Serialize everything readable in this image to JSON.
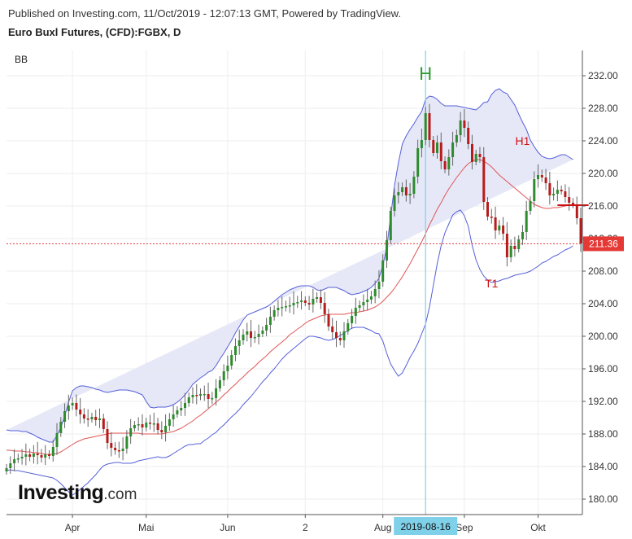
{
  "header": {
    "published": "Published on Investing.com, 11/Oct/2019 - 12:07:13 GMT, Powered by TradingView.",
    "instrument": "Euro Buxl Futures, (CFD):FGBX, D",
    "indicator": "BB"
  },
  "logo": {
    "brand": "Investing",
    "suffix": ".com"
  },
  "colors": {
    "up": "#2e8b2e",
    "down": "#b71c1c",
    "band_line": "#5560d8",
    "band_fill": "#e3e5f6",
    "basis": "#e05555",
    "price_line": "#e53935",
    "cursor": "#7fd1ea",
    "grid": "#eeeeee"
  },
  "chart_data": {
    "type": "candlestick",
    "title": "Euro Buxl Futures, (CFD):FGBX, D",
    "indicator": "Bollinger Bands",
    "ylim": [
      178,
      234
    ],
    "y_ticks": [
      180,
      184,
      188,
      192,
      196,
      200,
      204,
      208,
      212,
      216,
      220,
      224,
      228,
      232
    ],
    "x_ticks": [
      {
        "i": 17,
        "label": "Apr"
      },
      {
        "i": 36,
        "label": "Mai"
      },
      {
        "i": 57,
        "label": "Jun"
      },
      {
        "i": 77,
        "label": "2"
      },
      {
        "i": 97,
        "label": "Aug"
      },
      {
        "i": 118,
        "label": "Sep"
      },
      {
        "i": 137,
        "label": "Okt"
      }
    ],
    "cursor": {
      "i": 108,
      "label": "2019-08-16"
    },
    "current_price": 211.36,
    "annotations": [
      {
        "i": 108,
        "y": 231.5,
        "text": "H",
        "color": "#2e9a2e"
      },
      {
        "i": 133,
        "y": 223.5,
        "text": "H1",
        "color": "#cc1111"
      },
      {
        "i": 125,
        "y": 206.0,
        "text": "T1",
        "color": "#cc1111"
      }
    ],
    "level": {
      "from_i": 142,
      "to_i": 150,
      "y": 216.1
    },
    "close": [
      183.8,
      184.4,
      184.9,
      185.0,
      185.2,
      185.5,
      185.2,
      185.6,
      185.4,
      185.1,
      185.5,
      185.3,
      186.4,
      188.1,
      189.5,
      190.8,
      191.5,
      191.8,
      191.0,
      190.4,
      189.9,
      189.8,
      190.1,
      189.7,
      189.9,
      188.6,
      186.9,
      186.3,
      186.0,
      185.9,
      186.2,
      187.7,
      188.7,
      189.1,
      189.2,
      188.8,
      189.4,
      189.3,
      189.3,
      188.5,
      188.2,
      189.0,
      189.8,
      190.4,
      190.9,
      191.2,
      191.8,
      192.5,
      192.8,
      192.7,
      192.9,
      192.9,
      192.3,
      192.4,
      193.6,
      194.6,
      195.7,
      196.4,
      197.7,
      198.8,
      199.5,
      200.2,
      200.6,
      199.8,
      199.9,
      200.3,
      200.7,
      201.4,
      202.4,
      203.2,
      203.5,
      203.6,
      203.7,
      203.8,
      204.1,
      204.2,
      204.4,
      204.1,
      203.9,
      204.6,
      204.8,
      204.1,
      202.7,
      201.2,
      200.5,
      199.8,
      199.5,
      200.6,
      201.6,
      202.5,
      203.5,
      203.8,
      204.2,
      204.5,
      204.9,
      205.8,
      206.7,
      209.3,
      211.8,
      215.4,
      217.3,
      217.7,
      218.3,
      217.3,
      217.5,
      219.6,
      223.1,
      224.1,
      227.4,
      224.1,
      222.5,
      223.8,
      221.5,
      220.5,
      222.0,
      223.8,
      224.7,
      226.5,
      225.6,
      223.6,
      221.4,
      222.4,
      222.0,
      216.5,
      214.7,
      214.6,
      213.0,
      213.6,
      212.6,
      209.7,
      211.1,
      210.7,
      211.9,
      212.8,
      215.4,
      216.6,
      219.3,
      219.8,
      219.5,
      218.8,
      217.3,
      217.5,
      218.0,
      217.8,
      217.1,
      216.4,
      216.2,
      214.5,
      211.4
    ],
    "upper_band": [
      188.5,
      188.4,
      188.4,
      188.4,
      188.3,
      188.3,
      188.1,
      187.9,
      187.6,
      187.4,
      187.2,
      187.0,
      187.0,
      187.8,
      188.8,
      190.2,
      191.9,
      193.3,
      193.7,
      193.9,
      193.9,
      193.8,
      193.7,
      193.5,
      193.4,
      193.2,
      193.1,
      193.2,
      193.3,
      193.4,
      193.4,
      193.4,
      193.3,
      193.2,
      193.0,
      192.8,
      192.0,
      191.3,
      191.2,
      191.3,
      191.3,
      191.3,
      191.4,
      191.6,
      191.9,
      192.3,
      192.8,
      193.4,
      194.1,
      194.5,
      194.9,
      195.2,
      195.6,
      195.8,
      196.4,
      197.2,
      197.9,
      198.7,
      199.5,
      200.4,
      201.2,
      202.0,
      202.6,
      202.8,
      203.0,
      203.2,
      203.4,
      203.6,
      203.9,
      204.3,
      204.7,
      205.1,
      205.4,
      205.7,
      205.9,
      206.1,
      206.2,
      206.2,
      206.2,
      206.0,
      205.7,
      205.6,
      205.8,
      206.0,
      206.0,
      206.0,
      205.8,
      205.6,
      205.3,
      205.1,
      205.2,
      205.3,
      205.5,
      205.7,
      206.0,
      206.5,
      207.1,
      208.7,
      210.9,
      214.7,
      218.5,
      221.3,
      223.6,
      224.6,
      225.4,
      226.1,
      226.9,
      227.6,
      229.1,
      229.5,
      229.4,
      229.1,
      228.6,
      228.3,
      228.3,
      228.3,
      228.3,
      228.2,
      228.1,
      228.0,
      227.9,
      227.8,
      228.2,
      228.7,
      228.8,
      229.7,
      230.2,
      230.4,
      230.0,
      229.8,
      229.1,
      228.4,
      227.3,
      226.3,
      225.4,
      224.1,
      223.3,
      222.6,
      222.1,
      221.9,
      221.8,
      221.9,
      222.1,
      222.3,
      222.3,
      222.0,
      221.7
    ],
    "basis": [
      186.0,
      186.0,
      185.9,
      185.9,
      185.9,
      185.8,
      185.8,
      185.7,
      185.7,
      185.6,
      185.5,
      185.5,
      185.5,
      185.6,
      185.8,
      186.1,
      186.4,
      186.7,
      187.0,
      187.2,
      187.4,
      187.5,
      187.6,
      187.7,
      187.8,
      187.9,
      188.0,
      188.1,
      188.1,
      188.1,
      188.1,
      188.1,
      188.1,
      188.1,
      188.1,
      188.0,
      188.0,
      188.0,
      188.0,
      188.0,
      188.0,
      188.1,
      188.2,
      188.3,
      188.5,
      188.7,
      189.0,
      189.3,
      189.6,
      190.0,
      190.3,
      190.7,
      191.1,
      191.5,
      191.9,
      192.3,
      192.8,
      193.2,
      193.7,
      194.1,
      194.6,
      195.0,
      195.5,
      195.9,
      196.3,
      196.8,
      197.2,
      197.6,
      198.1,
      198.5,
      198.9,
      199.3,
      199.7,
      200.2,
      200.5,
      200.9,
      201.2,
      201.6,
      201.9,
      202.1,
      202.3,
      202.5,
      202.6,
      202.7,
      202.7,
      202.7,
      202.7,
      202.7,
      202.8,
      202.9,
      202.9,
      203.0,
      203.1,
      203.2,
      203.4,
      203.6,
      203.9,
      204.3,
      204.8,
      205.3,
      205.9,
      206.6,
      207.3,
      208.1,
      208.9,
      209.8,
      210.7,
      211.6,
      212.6,
      213.7,
      214.6,
      215.6,
      216.4,
      217.3,
      218.1,
      218.8,
      219.5,
      220.1,
      220.7,
      221.2,
      221.5,
      221.7,
      221.7,
      221.5,
      221.2,
      220.8,
      220.3,
      219.8,
      219.4,
      219.0,
      218.6,
      218.2,
      217.8,
      217.4,
      217.0,
      216.6,
      216.2,
      216.0,
      215.8,
      215.7,
      215.7,
      215.8,
      215.8,
      215.9,
      216.0,
      216.1,
      216.2
    ],
    "lower_band": [
      183.5,
      183.6,
      183.5,
      183.5,
      183.4,
      183.3,
      183.2,
      183.1,
      183.0,
      182.9,
      182.8,
      182.7,
      182.6,
      182.3,
      181.9,
      181.4,
      180.9,
      180.5,
      180.8,
      181.2,
      181.6,
      182.0,
      182.5,
      183.0,
      183.6,
      184.1,
      184.3,
      184.4,
      184.5,
      184.5,
      184.4,
      184.4,
      184.4,
      184.5,
      184.7,
      184.8,
      184.9,
      185.0,
      185.1,
      185.2,
      185.1,
      185.1,
      185.3,
      185.6,
      185.9,
      186.2,
      186.5,
      186.7,
      186.7,
      186.8,
      186.8,
      187.2,
      187.5,
      187.9,
      188.2,
      188.7,
      189.1,
      189.6,
      190.1,
      190.5,
      191.0,
      191.6,
      192.1,
      192.6,
      193.2,
      193.8,
      194.4,
      194.9,
      195.5,
      196.0,
      196.6,
      197.2,
      197.7,
      198.1,
      198.5,
      198.9,
      199.3,
      199.7,
      200.0,
      200.0,
      199.9,
      199.8,
      199.6,
      199.5,
      199.6,
      199.8,
      200.1,
      200.4,
      200.7,
      201.0,
      201.1,
      201.1,
      201.1,
      200.9,
      200.7,
      200.4,
      200.3,
      199.4,
      197.9,
      196.6,
      195.8,
      195.1,
      195.5,
      196.4,
      197.4,
      198.2,
      199.1,
      200.3,
      201.5,
      203.6,
      206.2,
      208.9,
      211.1,
      212.7,
      213.8,
      214.9,
      215.3,
      215.5,
      214.8,
      213.5,
      211.2,
      209.4,
      208.2,
      207.4,
      206.9,
      206.6,
      206.7,
      206.8,
      207.0,
      207.1,
      207.3,
      207.5,
      207.6,
      207.7,
      207.8,
      208.0,
      208.3,
      208.6,
      209.0,
      209.2,
      209.5,
      209.8,
      210.0,
      210.3,
      210.6,
      210.8,
      211.1
    ]
  }
}
